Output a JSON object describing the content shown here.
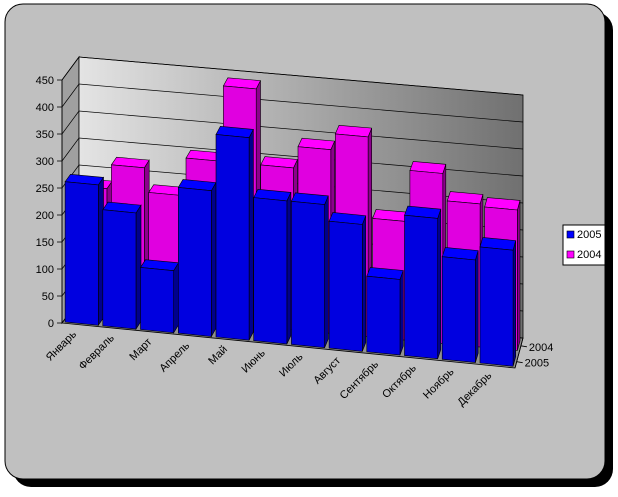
{
  "chart_data": {
    "type": "bar",
    "title": "",
    "xlabel": "",
    "ylabel": "",
    "ylim": [
      0,
      450
    ],
    "y_ticks": [
      "0",
      "50",
      "100",
      "150",
      "200",
      "250",
      "300",
      "350",
      "400",
      "450"
    ],
    "categories": [
      "Январь",
      "Февраль",
      "Март",
      "Апрель",
      "Май",
      "Июнь",
      "Июль",
      "Август",
      "Сентябрь",
      "Октябрь",
      "Ноябрь",
      "Декабрь"
    ],
    "depth_labels": [
      "2004",
      "2005"
    ],
    "series": [
      {
        "name": "2005",
        "color": "#0000ff",
        "values": [
          260,
          215,
          115,
          270,
          375,
          265,
          265,
          235,
          140,
          260,
          190,
          215
        ]
      },
      {
        "name": "2004",
        "color": "#ff00ff",
        "values": [
          230,
          275,
          230,
          300,
          440,
          300,
          340,
          370,
          220,
          315,
          265,
          260
        ]
      }
    ],
    "legend": {
      "placement": "right",
      "entries": [
        "2005",
        "2004"
      ]
    },
    "grid": true,
    "projection": "3d-perspective"
  }
}
